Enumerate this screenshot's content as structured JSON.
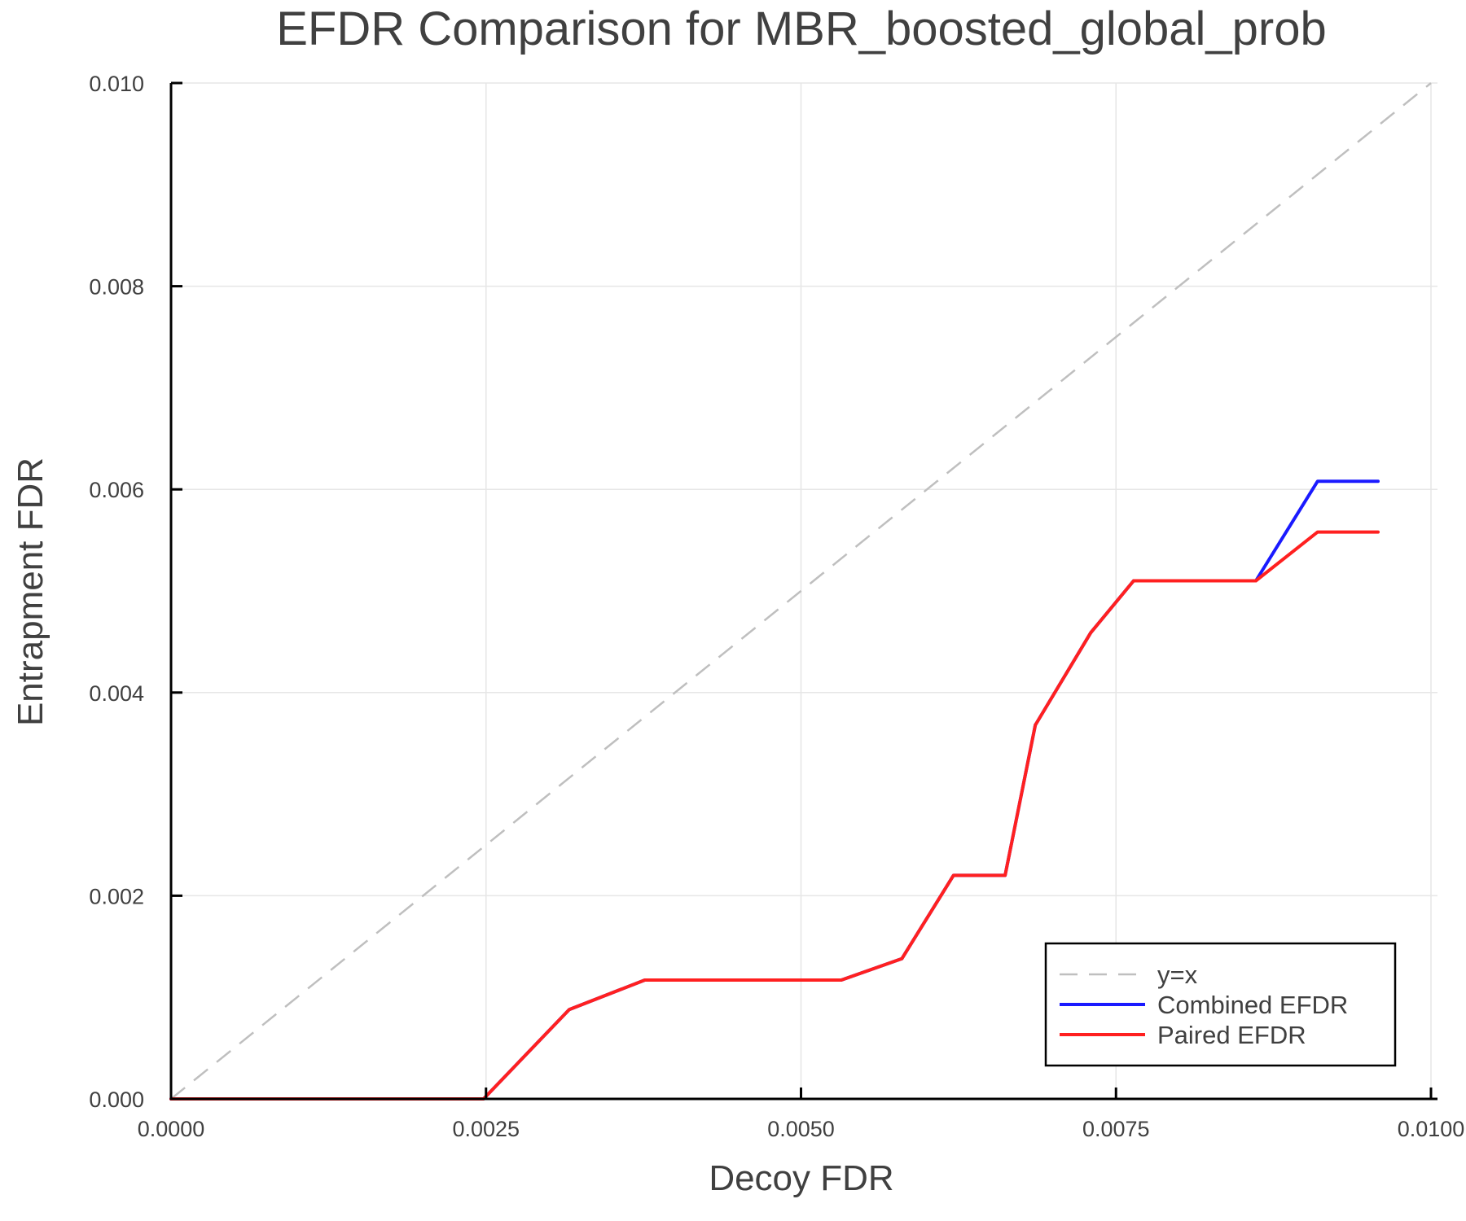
{
  "chart_data": {
    "type": "line",
    "title": "EFDR Comparison for MBR_boosted_global_prob",
    "xlabel": "Decoy FDR",
    "ylabel": "Entrapment FDR",
    "xlim": [
      0,
      0.01
    ],
    "ylim": [
      0,
      0.01
    ],
    "grid": true,
    "legend_position": "bottom-right",
    "x_ticks": [
      0,
      0.0025,
      0.005,
      0.0075,
      0.01
    ],
    "x_tick_labels": [
      "0.0000",
      "0.0025",
      "0.0050",
      "0.0075",
      "0.0100"
    ],
    "y_ticks": [
      0,
      0.002,
      0.004,
      0.006,
      0.008,
      0.01
    ],
    "y_tick_labels": [
      "0.000",
      "0.002",
      "0.004",
      "0.006",
      "0.008",
      "0.010"
    ],
    "series": [
      {
        "name": "y=x",
        "color": "#bfbfbf",
        "style": "dashed",
        "x": [
          0,
          0.01
        ],
        "y": [
          0,
          0.01
        ]
      },
      {
        "name": "Combined EFDR",
        "color": "#1a1aff",
        "style": "solid",
        "x": [
          0,
          0.00248,
          0.00316,
          0.00376,
          0.00532,
          0.0058,
          0.00621,
          0.00662,
          0.00686,
          0.0073,
          0.00764,
          0.00861,
          0.0091,
          0.00958
        ],
        "y": [
          0,
          0,
          0.00088,
          0.00117,
          0.00117,
          0.00138,
          0.0022,
          0.0022,
          0.00368,
          0.00459,
          0.0051,
          0.0051,
          0.00608,
          0.00608
        ]
      },
      {
        "name": "Paired EFDR",
        "color": "#ff2020",
        "style": "solid",
        "x": [
          0,
          0.00248,
          0.00316,
          0.00376,
          0.00532,
          0.0058,
          0.00621,
          0.00662,
          0.00686,
          0.0073,
          0.00764,
          0.00861,
          0.0091,
          0.00958
        ],
        "y": [
          0,
          0,
          0.00088,
          0.00117,
          0.00117,
          0.00138,
          0.0022,
          0.0022,
          0.00368,
          0.00459,
          0.0051,
          0.0051,
          0.00558,
          0.00558
        ]
      }
    ]
  },
  "colors": {
    "text": "#404040",
    "axis": "#000000",
    "grid": "#e6e6e6",
    "background": "#ffffff"
  }
}
